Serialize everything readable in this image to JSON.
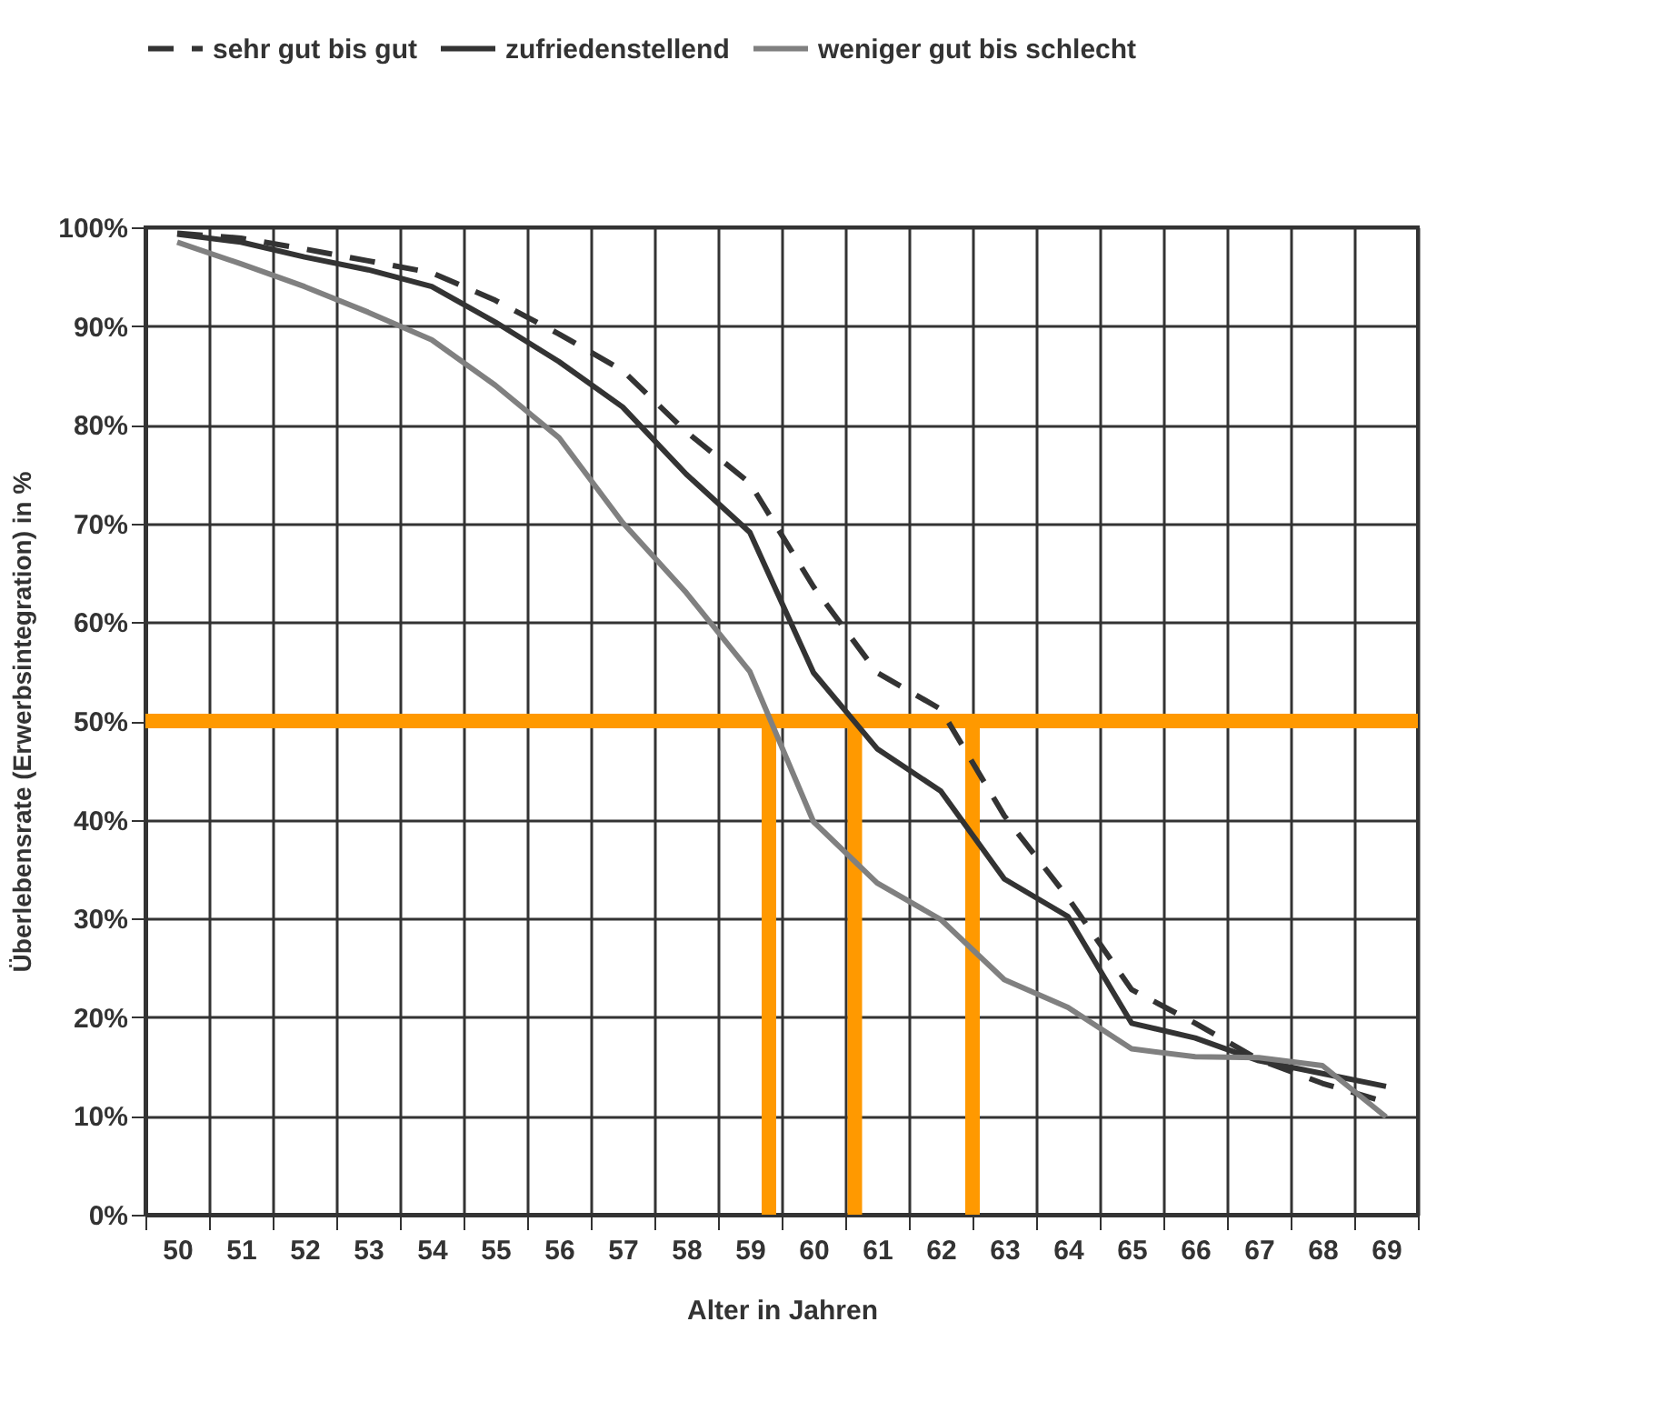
{
  "chart_data": {
    "type": "line",
    "xlabel": "Alter in Jahren",
    "ylabel": "Überlebensrate (Erwerbsintegration) in %",
    "x": [
      50,
      51,
      52,
      53,
      54,
      55,
      56,
      57,
      58,
      59,
      60,
      61,
      62,
      63,
      64,
      65,
      66,
      67,
      68,
      69
    ],
    "series": [
      {
        "name": "sehr gut bis gut",
        "color": "#333333",
        "line_style": "dashed",
        "values": [
          99.4,
          98.9,
          97.8,
          96.6,
          95.4,
          92.6,
          89.2,
          85.5,
          79.3,
          74.1,
          63.6,
          54.9,
          51.2,
          40.4,
          32.1,
          22.8,
          19.4,
          15.7,
          13.3,
          11.4
        ]
      },
      {
        "name": "zufriedenstellend",
        "color": "#333333",
        "line_style": "solid",
        "values": [
          99.3,
          98.5,
          97.0,
          95.7,
          94.0,
          90.4,
          86.4,
          81.8,
          75.0,
          69.1,
          54.9,
          47.2,
          42.9,
          34.0,
          30.2,
          19.4,
          17.9,
          15.6,
          14.3,
          13.0
        ]
      },
      {
        "name": "weniger gut bis schlecht",
        "color": "#808080",
        "line_style": "solid",
        "values": [
          98.5,
          96.3,
          94.0,
          91.4,
          88.6,
          84.0,
          78.7,
          70.1,
          63.0,
          55.0,
          39.8,
          33.6,
          29.9,
          23.8,
          21.0,
          16.8,
          16.0,
          15.9,
          15.1,
          9.9
        ]
      }
    ],
    "xlim": [
      49.5,
      69.5
    ],
    "xticks": [
      {
        "value": 49.5,
        "label": null
      },
      50,
      {
        "value": 50.5,
        "label": null
      },
      51,
      {
        "value": 51.5,
        "label": null
      },
      52,
      {
        "value": 52.5,
        "label": null
      },
      53,
      {
        "value": 53.5,
        "label": null
      },
      54,
      {
        "value": 54.5,
        "label": null
      },
      55,
      {
        "value": 55.5,
        "label": null
      },
      56,
      {
        "value": 56.5,
        "label": null
      },
      57,
      {
        "value": 57.5,
        "label": null
      },
      58,
      {
        "value": 58.5,
        "label": null
      },
      59,
      {
        "value": 59.5,
        "label": null
      },
      60,
      {
        "value": 60.5,
        "label": null
      },
      61,
      {
        "value": 61.5,
        "label": null
      },
      62,
      {
        "value": 62.5,
        "label": null
      },
      63,
      {
        "value": 63.5,
        "label": null
      },
      64,
      {
        "value": 64.5,
        "label": null
      },
      65,
      {
        "value": 65.5,
        "label": null
      },
      66,
      {
        "value": 66.5,
        "label": null
      },
      67,
      {
        "value": 67.5,
        "label": null
      },
      68,
      {
        "value": 68.5,
        "label": null
      },
      69,
      {
        "value": 69.5,
        "label": null
      }
    ],
    "ylim": [
      0,
      100
    ],
    "yticks": [
      {
        "value": 0,
        "label": "0%"
      },
      {
        "value": 10,
        "label": "10%"
      },
      {
        "value": 20,
        "label": "20%"
      },
      {
        "value": 30,
        "label": "30%"
      },
      {
        "value": 40,
        "label": "40%"
      },
      {
        "value": 50,
        "label": "50%"
      },
      {
        "value": 60,
        "label": "60%"
      },
      {
        "value": 70,
        "label": "70%"
      },
      {
        "value": 80,
        "label": "80%"
      },
      {
        "value": 90,
        "label": "90%"
      },
      {
        "value": 100,
        "label": "100%"
      }
    ],
    "ref_lines": [
      {
        "axis": "y",
        "value": 50,
        "color": "#ff9900"
      },
      {
        "axis": "x",
        "value": 59.3,
        "color": "#ff9900"
      },
      {
        "axis": "x",
        "value": 60.65,
        "color": "#ff9900"
      },
      {
        "axis": "x",
        "value": 62.5,
        "color": "#ff9900"
      }
    ],
    "grid": true,
    "legend": "top",
    "marker": "none"
  }
}
